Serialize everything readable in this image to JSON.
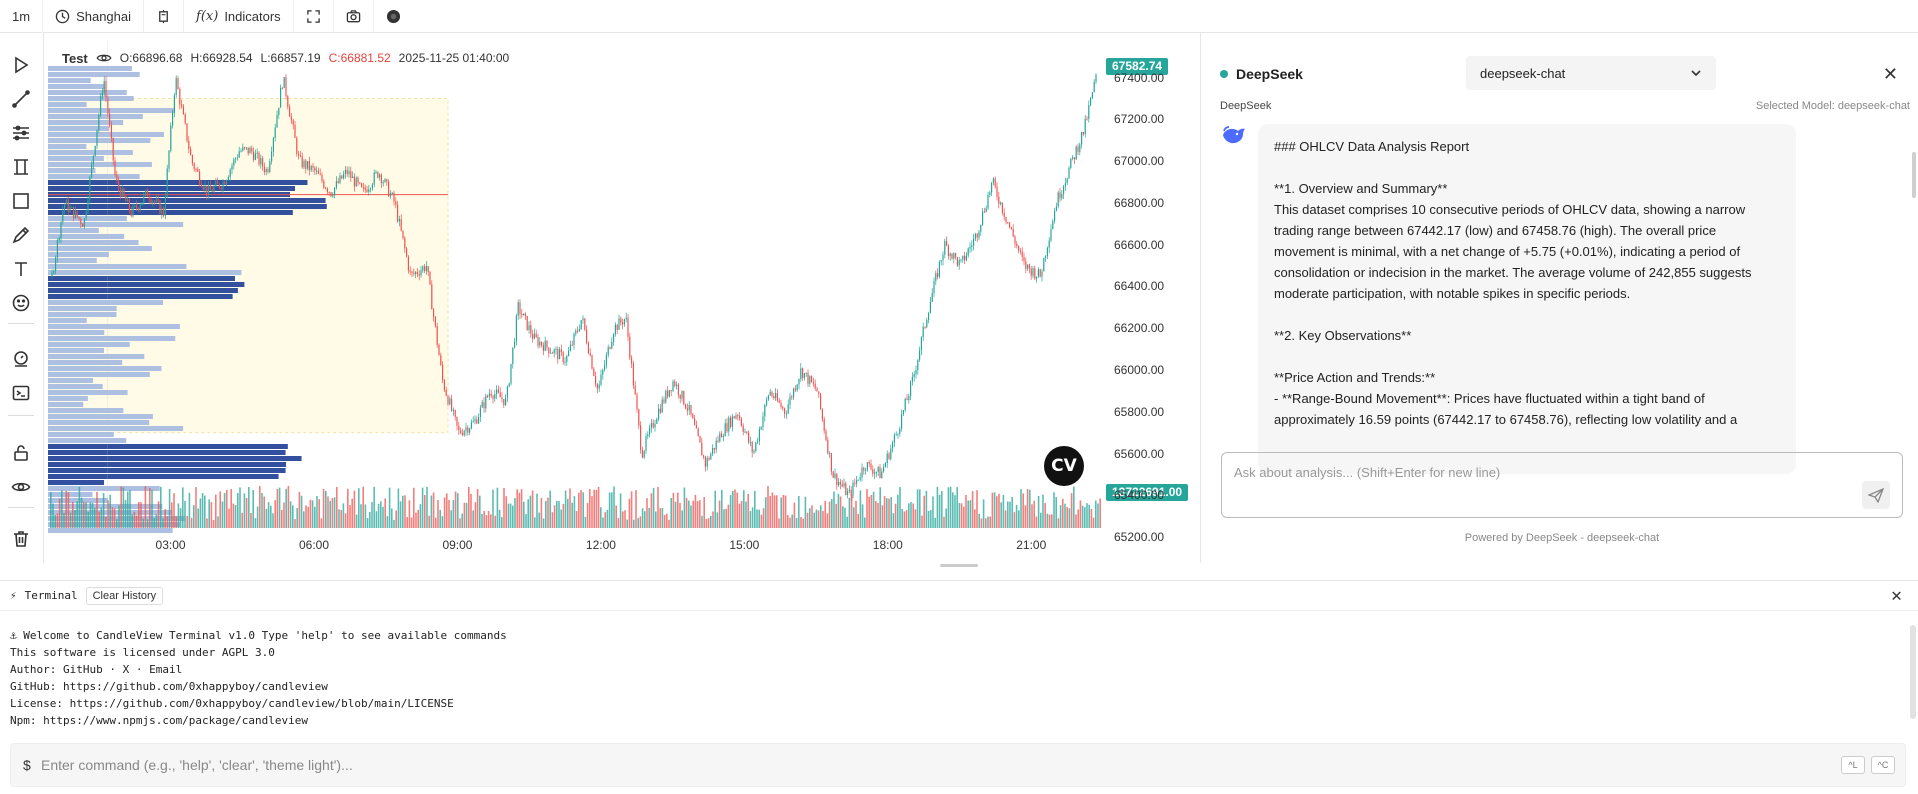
{
  "toolbar": {
    "interval": "1m",
    "timezone": "Shanghai",
    "indicators_icon_label": "f(x)",
    "indicators_label": "Indicators"
  },
  "chart_info": {
    "symbol": "Test",
    "open": "O:66896.68",
    "high": "H:66928.54",
    "low": "L:66857.19",
    "close": "C:66881.52",
    "datetime": "2025-11-25 01:40:00"
  },
  "price_axis": {
    "ticks": [
      "67400.00",
      "67200.00",
      "67000.00",
      "66800.00",
      "66600.00",
      "66400.00",
      "66200.00",
      "66000.00",
      "65800.00",
      "65600.00",
      "65400.00",
      "65200.00"
    ],
    "current_price": "67582.74",
    "volume": "13722691.00"
  },
  "time_axis": {
    "ticks": [
      "03:00",
      "06:00",
      "09:00",
      "12:00",
      "15:00",
      "18:00",
      "21:00"
    ]
  },
  "colors": {
    "up": "#26a69a",
    "down": "#ef5350",
    "profile_dark": "#27479a",
    "profile_light": "#a9bde0",
    "value_area": "#fffbe6"
  },
  "chart_data": {
    "type": "candlestick",
    "x_range": [
      "00:30",
      "22:20"
    ],
    "ylim": [
      65100,
      67580
    ],
    "path": [
      [
        "00:30",
        66450
      ],
      [
        "00:45",
        66800
      ],
      [
        "01:10",
        66700
      ],
      [
        "01:35",
        67400
      ],
      [
        "01:50",
        66900
      ],
      [
        "02:10",
        66750
      ],
      [
        "02:30",
        66850
      ],
      [
        "02:50",
        66750
      ],
      [
        "03:05",
        67400
      ],
      [
        "03:25",
        67000
      ],
      [
        "03:45",
        66850
      ],
      [
        "04:05",
        66900
      ],
      [
        "04:25",
        67050
      ],
      [
        "04:40",
        67050
      ],
      [
        "05:00",
        66950
      ],
      [
        "05:20",
        67400
      ],
      [
        "05:40",
        67000
      ],
      [
        "06:00",
        66950
      ],
      [
        "06:20",
        66850
      ],
      [
        "06:40",
        66950
      ],
      [
        "07:00",
        66850
      ],
      [
        "07:20",
        66950
      ],
      [
        "07:40",
        66800
      ],
      [
        "08:00",
        66450
      ],
      [
        "08:20",
        66500
      ],
      [
        "08:40",
        65950
      ],
      [
        "09:00",
        65700
      ],
      [
        "09:20",
        65750
      ],
      [
        "09:40",
        65900
      ],
      [
        "10:00",
        65850
      ],
      [
        "10:15",
        66300
      ],
      [
        "10:35",
        66150
      ],
      [
        "10:55",
        66100
      ],
      [
        "11:15",
        66050
      ],
      [
        "11:35",
        66250
      ],
      [
        "11:55",
        65900
      ],
      [
        "12:15",
        66200
      ],
      [
        "12:30",
        66250
      ],
      [
        "12:50",
        65600
      ],
      [
        "13:10",
        65800
      ],
      [
        "13:30",
        65950
      ],
      [
        "13:50",
        65800
      ],
      [
        "14:10",
        65550
      ],
      [
        "14:30",
        65700
      ],
      [
        "14:50",
        65800
      ],
      [
        "15:10",
        65600
      ],
      [
        "15:30",
        65900
      ],
      [
        "15:50",
        65800
      ],
      [
        "16:10",
        66000
      ],
      [
        "16:30",
        65900
      ],
      [
        "16:50",
        65500
      ],
      [
        "17:10",
        65400
      ],
      [
        "17:30",
        65550
      ],
      [
        "17:50",
        65500
      ],
      [
        "18:10",
        65700
      ],
      [
        "18:30",
        65950
      ],
      [
        "18:50",
        66300
      ],
      [
        "19:10",
        66600
      ],
      [
        "19:30",
        66500
      ],
      [
        "19:50",
        66650
      ],
      [
        "20:10",
        66900
      ],
      [
        "20:30",
        66700
      ],
      [
        "20:50",
        66500
      ],
      [
        "21:10",
        66450
      ],
      [
        "21:30",
        66800
      ],
      [
        "21:50",
        67000
      ],
      [
        "22:05",
        67150
      ],
      [
        "22:20",
        67400
      ]
    ],
    "volume_profile_value_area": [
      65700,
      67300
    ],
    "poc": 66840,
    "cursor_time": "01:40"
  },
  "ai": {
    "name": "DeepSeek",
    "model": "deepseek-chat",
    "sub_label": "DeepSeek",
    "selected_model": "Selected Model: deepseek-chat",
    "message": "### OHLCV Data Analysis Report\n\n**1. Overview and Summary**\nThis dataset comprises 10 consecutive periods of OHLCV data, showing a narrow trading range between 67442.17 (low) and 67458.76 (high). The overall price movement is minimal, with a net change of +5.75 (+0.01%), indicating a period of consolidation or indecision in the market. The average volume of 242,855 suggests moderate participation, with notable spikes in specific periods.\n\n**2. Key Observations**\n\n**Price Action and Trends:**\n- **Range-Bound Movement**: Prices have fluctuated within a tight band of approximately 16.59 points (67442.17 to 67458.76), reflecting low volatility and a",
    "input_placeholder": "Ask about analysis... (Shift+Enter for new line)",
    "powered": "Powered by DeepSeek - deepseek-chat"
  },
  "terminal": {
    "title": "Terminal",
    "clear_label": "Clear History",
    "lines": [
      "⚓ Welcome to CandleView Terminal v1.0 Type 'help' to see available commands",
      "This software is licensed under AGPL 3.0",
      "Author: GitHub · X · Email",
      "GitHub: https://github.com/0xhappyboy/candleview",
      "License: https://github.com/0xhappyboy/candleview/blob/main/LICENSE",
      "Npm: https://www.npmjs.com/package/candleview"
    ],
    "prompt": "$",
    "input_placeholder": "Enter command (e.g., 'help', 'clear', 'theme light')...",
    "kbd1": "^L",
    "kbd2": "^C"
  }
}
